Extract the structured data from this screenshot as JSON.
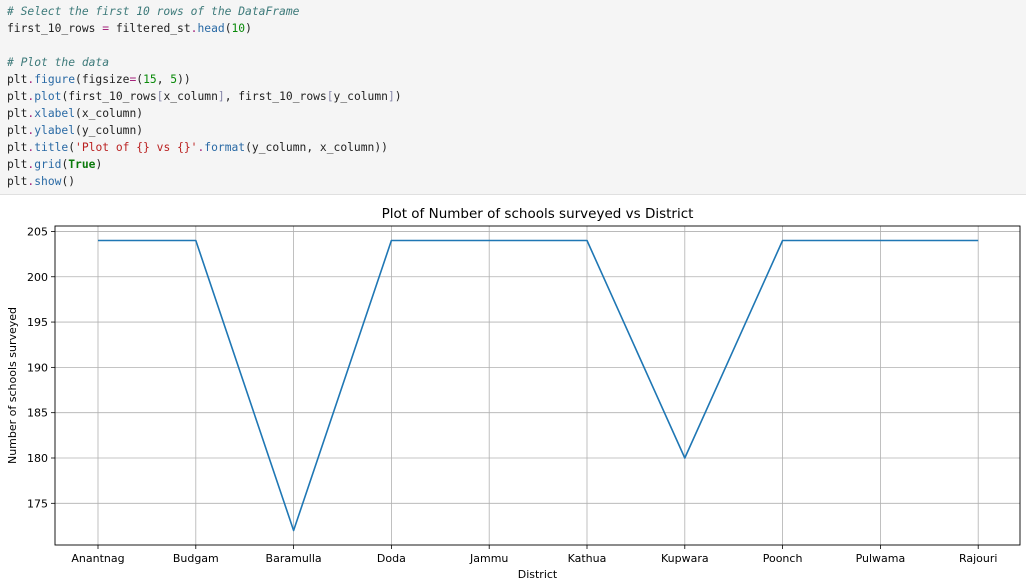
{
  "code_cell": {
    "lines": [
      [
        {
          "t": "# Select the first 10 rows of the DataFrame",
          "c": "comment"
        }
      ],
      [
        {
          "t": "first_10_rows ",
          "c": "plain"
        },
        {
          "t": "=",
          "c": "op"
        },
        {
          "t": " filtered_st",
          "c": "plain"
        },
        {
          "t": ".",
          "c": "op"
        },
        {
          "t": "head",
          "c": "attr"
        },
        {
          "t": "(",
          "c": "plain"
        },
        {
          "t": "10",
          "c": "num"
        },
        {
          "t": ")",
          "c": "plain"
        }
      ],
      [],
      [
        {
          "t": "# Plot the data",
          "c": "comment"
        }
      ],
      [
        {
          "t": "plt",
          "c": "plain"
        },
        {
          "t": ".",
          "c": "op"
        },
        {
          "t": "figure",
          "c": "attr"
        },
        {
          "t": "(figsize",
          "c": "plain"
        },
        {
          "t": "=",
          "c": "op"
        },
        {
          "t": "(",
          "c": "plain"
        },
        {
          "t": "15",
          "c": "num"
        },
        {
          "t": ", ",
          "c": "plain"
        },
        {
          "t": "5",
          "c": "num"
        },
        {
          "t": "))",
          "c": "plain"
        }
      ],
      [
        {
          "t": "plt",
          "c": "plain"
        },
        {
          "t": ".",
          "c": "op"
        },
        {
          "t": "plot",
          "c": "attr"
        },
        {
          "t": "(first_10_rows",
          "c": "plain"
        },
        {
          "t": "[",
          "c": "br"
        },
        {
          "t": "x_column",
          "c": "plain"
        },
        {
          "t": "]",
          "c": "br"
        },
        {
          "t": ", first_10_rows",
          "c": "plain"
        },
        {
          "t": "[",
          "c": "br"
        },
        {
          "t": "y_column",
          "c": "plain"
        },
        {
          "t": "]",
          "c": "br"
        },
        {
          "t": ")",
          "c": "plain"
        }
      ],
      [
        {
          "t": "plt",
          "c": "plain"
        },
        {
          "t": ".",
          "c": "op"
        },
        {
          "t": "xlabel",
          "c": "attr"
        },
        {
          "t": "(x_column)",
          "c": "plain"
        }
      ],
      [
        {
          "t": "plt",
          "c": "plain"
        },
        {
          "t": ".",
          "c": "op"
        },
        {
          "t": "ylabel",
          "c": "attr"
        },
        {
          "t": "(y_column)",
          "c": "plain"
        }
      ],
      [
        {
          "t": "plt",
          "c": "plain"
        },
        {
          "t": ".",
          "c": "op"
        },
        {
          "t": "title",
          "c": "attr"
        },
        {
          "t": "(",
          "c": "plain"
        },
        {
          "t": "'Plot of {} vs {}'",
          "c": "str"
        },
        {
          "t": ".",
          "c": "op"
        },
        {
          "t": "format",
          "c": "attr"
        },
        {
          "t": "(y_column, x_column))",
          "c": "plain"
        }
      ],
      [
        {
          "t": "plt",
          "c": "plain"
        },
        {
          "t": ".",
          "c": "op"
        },
        {
          "t": "grid",
          "c": "attr"
        },
        {
          "t": "(",
          "c": "plain"
        },
        {
          "t": "True",
          "c": "kw"
        },
        {
          "t": ")",
          "c": "plain"
        }
      ],
      [
        {
          "t": "plt",
          "c": "plain"
        },
        {
          "t": ".",
          "c": "op"
        },
        {
          "t": "show",
          "c": "attr"
        },
        {
          "t": "()",
          "c": "plain"
        }
      ]
    ]
  },
  "chart_data": {
    "type": "line",
    "title": "Plot of Number of schools surveyed vs District",
    "xlabel": "District",
    "ylabel": "Number of schools surveyed",
    "categories": [
      "Anantnag",
      "Budgam",
      "Baramulla",
      "Doda",
      "Jammu",
      "Kathua",
      "Kupwara",
      "Poonch",
      "Pulwama",
      "Rajouri"
    ],
    "series": [
      {
        "values": [
          204,
          204,
          172,
          204,
          204,
          204,
          180,
          204,
          204,
          204
        ]
      }
    ],
    "yticks": [
      175,
      180,
      185,
      190,
      195,
      200,
      205
    ],
    "ylim": [
      170.4,
      205.6
    ],
    "grid": true,
    "line_color": "#1f77b4"
  }
}
